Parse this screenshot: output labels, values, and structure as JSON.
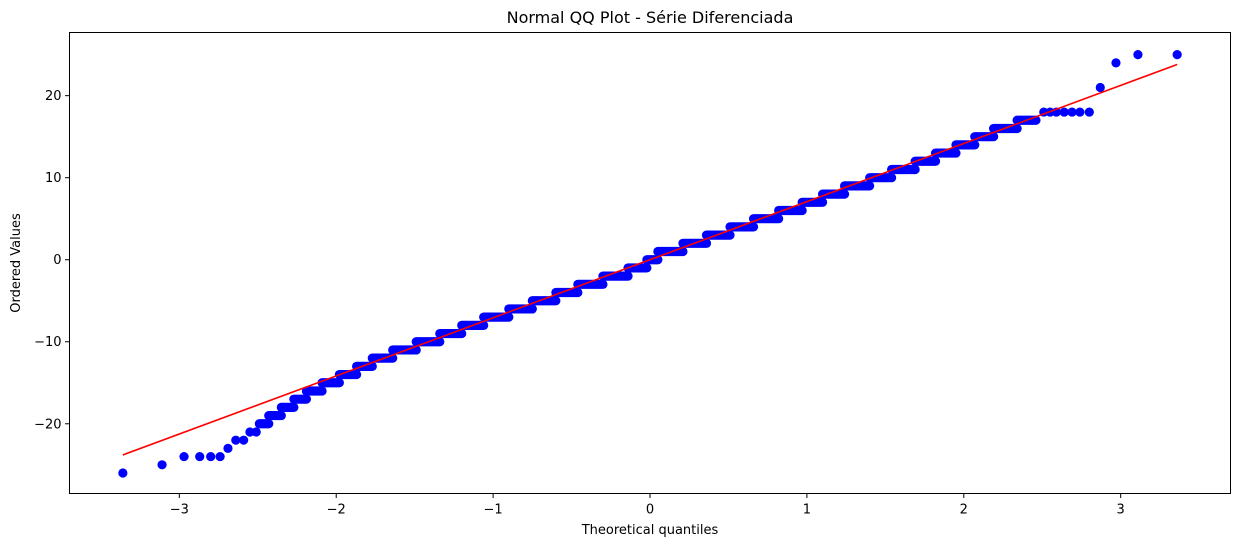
{
  "chart_data": {
    "type": "scatter",
    "title": "Normal QQ Plot - Série Diferenciada",
    "xlabel": "Theoretical quantiles",
    "ylabel": "Ordered Values",
    "xlim": [
      -3.7,
      3.7
    ],
    "ylim": [
      -28.5,
      27.7
    ],
    "x_ticks": [
      -3,
      -2,
      -1,
      0,
      1,
      2,
      3
    ],
    "x_tick_labels": [
      "−3",
      "−2",
      "−1",
      "0",
      "1",
      "2",
      "3"
    ],
    "y_ticks": [
      -20,
      -10,
      0,
      10,
      20
    ],
    "y_tick_labels": [
      "−20",
      "−10",
      "0",
      "10",
      "20"
    ],
    "grid": false,
    "colors": {
      "points": "#0000ff",
      "fit_line": "#ff0000"
    },
    "fit_line": {
      "x": [
        -3.36,
        3.36
      ],
      "y": [
        -23.8,
        23.8
      ]
    },
    "outlier_points": [
      [
        -3.36,
        -26
      ],
      [
        -3.11,
        -25
      ],
      [
        -2.97,
        -24
      ],
      [
        -2.87,
        -24
      ],
      [
        -2.8,
        -24
      ],
      [
        -2.74,
        -24
      ],
      [
        -2.69,
        -23
      ],
      [
        -2.64,
        -22
      ],
      [
        -2.59,
        -22
      ],
      [
        -2.55,
        -21
      ],
      [
        -2.51,
        -21
      ],
      [
        2.51,
        18
      ],
      [
        2.55,
        18
      ],
      [
        2.59,
        18
      ],
      [
        2.64,
        18
      ],
      [
        2.69,
        18
      ],
      [
        2.74,
        18
      ],
      [
        2.8,
        18
      ],
      [
        2.87,
        21
      ],
      [
        2.97,
        24
      ],
      [
        3.11,
        25
      ],
      [
        3.36,
        25
      ]
    ],
    "dense_steps": [
      [
        -2.49,
        -2.43,
        -20
      ],
      [
        -2.43,
        -2.35,
        -19
      ],
      [
        -2.35,
        -2.27,
        -18
      ],
      [
        -2.27,
        -2.19,
        -17
      ],
      [
        -2.19,
        -2.09,
        -16
      ],
      [
        -2.09,
        -1.98,
        -15
      ],
      [
        -1.98,
        -1.87,
        -14
      ],
      [
        -1.87,
        -1.77,
        -13
      ],
      [
        -1.77,
        -1.64,
        -12
      ],
      [
        -1.64,
        -1.49,
        -11
      ],
      [
        -1.49,
        -1.34,
        -10
      ],
      [
        -1.34,
        -1.2,
        -9
      ],
      [
        -1.2,
        -1.06,
        -8
      ],
      [
        -1.06,
        -0.9,
        -7
      ],
      [
        -0.9,
        -0.75,
        -6
      ],
      [
        -0.75,
        -0.6,
        -5
      ],
      [
        -0.6,
        -0.46,
        -4
      ],
      [
        -0.46,
        -0.3,
        -3
      ],
      [
        -0.3,
        -0.14,
        -2
      ],
      [
        -0.14,
        -0.02,
        -1
      ],
      [
        -0.02,
        0.05,
        0
      ],
      [
        0.05,
        0.21,
        1
      ],
      [
        0.21,
        0.36,
        2
      ],
      [
        0.36,
        0.51,
        3
      ],
      [
        0.51,
        0.66,
        4
      ],
      [
        0.66,
        0.82,
        5
      ],
      [
        0.82,
        0.97,
        6
      ],
      [
        0.97,
        1.1,
        7
      ],
      [
        1.1,
        1.24,
        8
      ],
      [
        1.24,
        1.4,
        9
      ],
      [
        1.4,
        1.54,
        10
      ],
      [
        1.54,
        1.69,
        11
      ],
      [
        1.69,
        1.82,
        12
      ],
      [
        1.82,
        1.95,
        13
      ],
      [
        1.95,
        2.07,
        14
      ],
      [
        2.07,
        2.19,
        15
      ],
      [
        2.19,
        2.34,
        16
      ],
      [
        2.34,
        2.46,
        17
      ]
    ]
  }
}
